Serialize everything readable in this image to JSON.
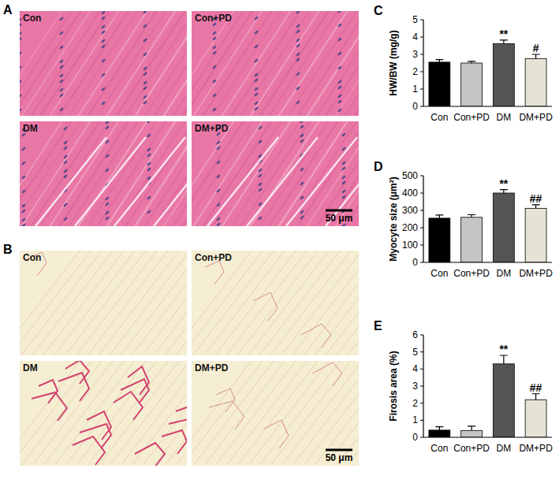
{
  "image_panels": [
    {
      "panel": "A",
      "images": [
        {
          "label": "Con"
        },
        {
          "label": "Con+PD"
        },
        {
          "label": "DM"
        },
        {
          "label": "DM+PD"
        }
      ],
      "scale_bar": "50 μm"
    },
    {
      "panel": "B",
      "images": [
        {
          "label": "Con"
        },
        {
          "label": "Con+PD"
        },
        {
          "label": "DM"
        },
        {
          "label": "DM+PD"
        }
      ],
      "scale_bar": "50 μm"
    }
  ],
  "chart_data": [
    {
      "type": "bar",
      "panel": "C",
      "y_label": "HW/BW (mg/g)",
      "categories": [
        "Con",
        "Con+PD",
        "DM",
        "DM+PD"
      ],
      "values": [
        2.55,
        2.5,
        3.62,
        2.75
      ],
      "errors": [
        0.15,
        0.1,
        0.2,
        0.25
      ],
      "colors": [
        "#000000",
        "#c4c4c4",
        "#555555",
        "#e6e2d6"
      ],
      "ylim": [
        0,
        5
      ],
      "yticks": [
        0,
        1,
        2,
        3,
        4,
        5
      ],
      "grid": false,
      "annotations": [
        {
          "category": "DM",
          "text": "**"
        },
        {
          "category": "DM+PD",
          "text": "#"
        }
      ]
    },
    {
      "type": "bar",
      "panel": "D",
      "y_label": "Myocyte size (μm²)",
      "categories": [
        "Con",
        "Con+PD",
        "DM",
        "DM+PD"
      ],
      "values": [
        255,
        260,
        400,
        312
      ],
      "errors": [
        18,
        15,
        20,
        20
      ],
      "colors": [
        "#000000",
        "#c4c4c4",
        "#555555",
        "#e6e2d6"
      ],
      "ylim": [
        0,
        500
      ],
      "yticks": [
        0,
        100,
        200,
        300,
        400,
        500
      ],
      "grid": false,
      "annotations": [
        {
          "category": "DM",
          "text": "**"
        },
        {
          "category": "DM+PD",
          "text": "##"
        }
      ]
    },
    {
      "type": "bar",
      "panel": "E",
      "y_label": "Firosis area (%)",
      "categories": [
        "Con",
        "Con+PD",
        "DM",
        "DM+PD"
      ],
      "values": [
        0.42,
        0.4,
        4.3,
        2.2
      ],
      "errors": [
        0.2,
        0.25,
        0.5,
        0.35
      ],
      "colors": [
        "#000000",
        "#c4c4c4",
        "#555555",
        "#e6e2d6"
      ],
      "ylim": [
        0,
        6
      ],
      "yticks": [
        0,
        1,
        2,
        3,
        4,
        5,
        6
      ],
      "grid": false,
      "annotations": [
        {
          "category": "DM",
          "text": "**"
        },
        {
          "category": "DM+PD",
          "text": "##"
        }
      ]
    }
  ]
}
